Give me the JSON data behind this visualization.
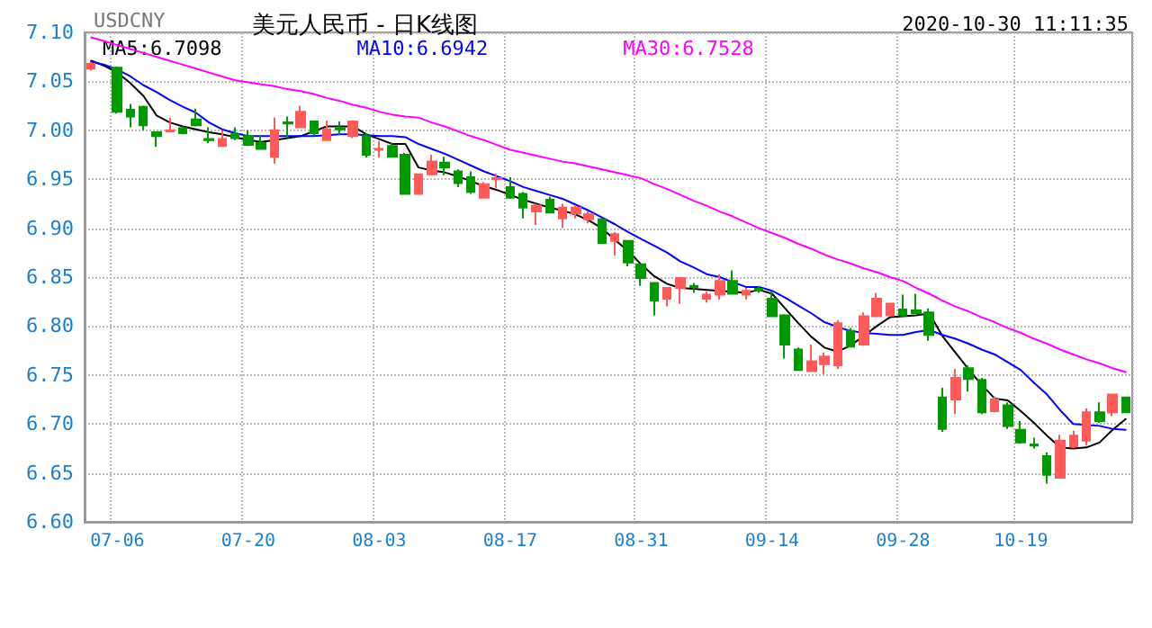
{
  "chart_data": {
    "type": "candlestick",
    "title": "美元人民币 - 日K线图",
    "annotations": [
      "USDCNY",
      "2020-10-30 11:11:35"
    ],
    "categories": [
      null,
      null,
      "07-06",
      null,
      null,
      null,
      null,
      null,
      null,
      null,
      null,
      null,
      "07-20",
      null,
      null,
      null,
      null,
      null,
      null,
      null,
      null,
      null,
      "08-03",
      null,
      null,
      null,
      null,
      null,
      null,
      null,
      null,
      null,
      "08-17",
      null,
      null,
      null,
      null,
      null,
      null,
      null,
      null,
      null,
      "08-31",
      null,
      null,
      null,
      null,
      null,
      null,
      null,
      null,
      null,
      "09-14",
      null,
      null,
      null,
      null,
      null,
      null,
      null,
      null,
      null,
      "09-28",
      null,
      null,
      null,
      null,
      null,
      null,
      null,
      null,
      "10-19",
      null,
      null,
      null,
      null,
      null,
      null,
      null,
      null
    ],
    "ohlc": [
      [
        7.063,
        7.07,
        7.061,
        7.068
      ],
      null,
      [
        7.064,
        7.065,
        7.017,
        7.019
      ],
      [
        7.021,
        7.027,
        7.003,
        7.014
      ],
      [
        7.024,
        7.025,
        7.0,
        7.005
      ],
      [
        6.998,
        6.999,
        6.983,
        6.994
      ],
      [
        6.999,
        7.013,
        6.998,
        7.0
      ],
      [
        7.002,
        7.004,
        6.996,
        6.997
      ],
      [
        7.011,
        7.022,
        7.004,
        7.005
      ],
      [
        6.991,
        7.003,
        6.987,
        6.99
      ],
      [
        6.984,
        7.0,
        6.984,
        6.991
      ],
      [
        6.996,
        7.003,
        6.99,
        6.992
      ],
      [
        6.994,
        7.0,
        6.984,
        6.985
      ],
      [
        6.987,
        6.995,
        6.981,
        6.981
      ],
      [
        6.973,
        7.013,
        6.966,
        7.0
      ],
      [
        7.008,
        7.014,
        6.992,
        7.007
      ],
      [
        7.003,
        7.025,
        7.003,
        7.019
      ],
      [
        7.009,
        7.01,
        6.995,
        6.997
      ],
      [
        6.99,
        7.01,
        6.99,
        7.001
      ],
      [
        7.002,
        7.009,
        6.995,
        7.001
      ],
      [
        6.994,
        7.01,
        6.992,
        7.009
      ],
      [
        6.994,
        6.997,
        6.972,
        6.975
      ],
      [
        6.98,
        6.989,
        6.972,
        6.981
      ],
      [
        6.984,
        6.987,
        6.973,
        6.973
      ],
      [
        6.975,
        6.977,
        6.935,
        6.935
      ],
      [
        6.935,
        6.955,
        6.935,
        6.955
      ],
      [
        6.955,
        6.975,
        6.954,
        6.968
      ],
      [
        6.967,
        6.973,
        6.954,
        6.962
      ],
      [
        6.958,
        6.96,
        6.942,
        6.946
      ],
      [
        6.952,
        6.958,
        6.935,
        6.937
      ],
      [
        6.931,
        6.947,
        6.931,
        6.945
      ],
      [
        6.95,
        6.956,
        6.941,
        6.951
      ],
      [
        6.942,
        6.952,
        6.93,
        6.931
      ],
      [
        6.935,
        6.937,
        6.91,
        6.921
      ],
      [
        6.917,
        6.925,
        6.903,
        6.923
      ],
      [
        6.929,
        6.932,
        6.915,
        6.916
      ],
      [
        6.91,
        6.925,
        6.9,
        6.921
      ],
      [
        6.915,
        6.923,
        6.91,
        6.921
      ],
      [
        6.909,
        6.917,
        6.905,
        6.914
      ],
      [
        6.909,
        6.91,
        6.885,
        6.885
      ],
      [
        6.887,
        6.896,
        6.872,
        6.894
      ],
      [
        6.887,
        6.888,
        6.861,
        6.865
      ],
      [
        6.863,
        6.864,
        6.841,
        6.849
      ],
      [
        6.844,
        6.845,
        6.811,
        6.826
      ],
      [
        6.828,
        6.839,
        6.82,
        6.839
      ],
      [
        6.839,
        6.849,
        6.823,
        6.849
      ],
      [
        6.841,
        6.844,
        6.834,
        6.84
      ],
      [
        6.828,
        6.835,
        6.824,
        6.832
      ],
      [
        6.832,
        6.853,
        6.827,
        6.846
      ],
      [
        6.846,
        6.857,
        6.832,
        6.833
      ],
      [
        6.832,
        6.839,
        6.827,
        6.836
      ],
      [
        6.838,
        6.841,
        6.834,
        6.837
      ],
      [
        6.828,
        6.836,
        6.809,
        6.81
      ],
      [
        6.811,
        6.812,
        6.767,
        6.781
      ],
      [
        6.776,
        6.778,
        6.755,
        6.755
      ],
      [
        6.754,
        6.781,
        6.754,
        6.764
      ],
      [
        6.761,
        6.773,
        6.751,
        6.769
      ],
      [
        6.76,
        6.806,
        6.756,
        6.803
      ],
      [
        6.795,
        6.798,
        6.778,
        6.779
      ],
      [
        6.781,
        6.814,
        6.78,
        6.81
      ],
      [
        6.81,
        6.834,
        6.81,
        6.828
      ],
      [
        6.811,
        6.823,
        6.81,
        6.823
      ],
      [
        6.817,
        6.832,
        6.81,
        6.811
      ],
      [
        6.816,
        6.833,
        6.813,
        6.813
      ],
      [
        6.814,
        6.818,
        6.785,
        6.791
      ],
      [
        6.727,
        6.737,
        6.692,
        6.695
      ],
      [
        6.725,
        6.756,
        6.71,
        6.747
      ],
      [
        6.757,
        6.76,
        6.733,
        6.746
      ],
      [
        6.745,
        6.747,
        6.71,
        6.712
      ],
      [
        6.713,
        6.728,
        6.712,
        6.725
      ],
      [
        6.719,
        6.722,
        6.695,
        6.698
      ],
      [
        6.694,
        6.703,
        6.68,
        6.681
      ],
      [
        6.679,
        6.686,
        6.675,
        6.678
      ],
      [
        6.667,
        6.671,
        6.639,
        6.648
      ],
      [
        6.645,
        6.689,
        6.645,
        6.683
      ],
      [
        6.677,
        6.693,
        6.677,
        6.688
      ],
      [
        6.683,
        6.716,
        6.678,
        6.712
      ],
      [
        6.712,
        6.722,
        6.701,
        6.703
      ],
      [
        6.712,
        6.73,
        6.708,
        6.73
      ],
      [
        6.727,
        6.727,
        6.712,
        6.712
      ]
    ],
    "colors": [
      "#ff5a5a",
      null,
      "#009900",
      "#009900",
      "#009900",
      "#009900",
      "#ff5a5a",
      "#009900",
      "#009900",
      "#009900",
      "#ff5a5a",
      "#009900",
      "#009900",
      "#009900",
      "#ff5a5a",
      "#009900",
      "#ff5a5a",
      "#009900",
      "#ff5a5a",
      "#009900",
      "#ff5a5a",
      "#009900",
      "#ff5a5a",
      "#009900",
      "#009900",
      "#ff5a5a",
      "#ff5a5a",
      "#009900",
      "#009900",
      "#009900",
      "#ff5a5a",
      "#ff5a5a",
      "#009900",
      "#009900",
      "#ff5a5a",
      "#009900",
      "#ff5a5a",
      "#ff5a5a",
      "#ff5a5a",
      "#009900",
      "#ff5a5a",
      "#009900",
      "#009900",
      "#009900",
      "#ff5a5a",
      "#ff5a5a",
      "#009900",
      "#ff5a5a",
      "#ff5a5a",
      "#009900",
      "#ff5a5a",
      "#009900",
      "#009900",
      "#009900",
      "#009900",
      "#ff5a5a",
      "#ff5a5a",
      "#ff5a5a",
      "#009900",
      "#ff5a5a",
      "#ff5a5a",
      "#ff5a5a",
      "#009900",
      "#009900",
      "#009900",
      "#009900",
      "#ff5a5a",
      "#009900",
      "#009900",
      "#ff5a5a",
      "#009900",
      "#009900",
      "#009900",
      "#009900",
      "#ff5a5a",
      "#ff5a5a",
      "#ff5a5a",
      "#009900",
      "#ff5a5a",
      "#009900"
    ],
    "series": [
      {
        "name": "MA5:6.7098",
        "type": "line",
        "color": "#000000",
        "values": [
          7.071,
          7.066,
          7.059,
          7.048,
          7.035,
          7.015,
          7.008,
          7.004,
          7.001,
          6.998,
          6.996,
          6.993,
          6.99,
          6.988,
          6.99,
          6.992,
          6.994,
          6.999,
          7.004,
          7.004,
          7.004,
          6.996,
          6.991,
          6.986,
          6.986,
          6.962,
          6.959,
          6.957,
          6.953,
          6.948,
          6.943,
          6.939,
          6.934,
          6.929,
          6.925,
          6.921,
          6.918,
          6.914,
          6.908,
          6.9,
          6.888,
          6.877,
          6.863,
          6.851,
          6.843,
          6.839,
          6.838,
          6.837,
          6.836,
          6.835,
          6.834,
          6.837,
          6.833,
          6.818,
          6.803,
          6.789,
          6.778,
          6.774,
          6.78,
          6.79,
          6.8,
          6.809,
          6.81,
          6.811,
          6.813,
          6.79,
          6.773,
          6.756,
          6.74,
          6.726,
          6.724,
          6.713,
          6.701,
          6.688,
          6.676,
          6.675,
          6.676,
          6.681,
          6.694,
          6.705
        ]
      },
      {
        "name": "MA10:6.6942",
        "type": "line",
        "color": "#0000ff",
        "values": [
          7.07,
          7.067,
          7.062,
          7.055,
          7.046,
          7.039,
          7.031,
          7.024,
          7.018,
          7.008,
          7.001,
          6.997,
          6.994,
          6.994,
          6.994,
          6.994,
          6.994,
          6.994,
          6.995,
          6.996,
          6.996,
          6.995,
          6.994,
          6.994,
          6.993,
          6.986,
          6.981,
          6.976,
          6.97,
          6.964,
          6.958,
          6.953,
          6.948,
          6.942,
          6.938,
          6.934,
          6.93,
          6.924,
          6.918,
          6.911,
          6.904,
          6.896,
          6.889,
          6.882,
          6.875,
          6.866,
          6.86,
          6.853,
          6.85,
          6.845,
          6.84,
          6.84,
          6.836,
          6.829,
          6.821,
          6.813,
          6.804,
          6.799,
          6.795,
          6.793,
          6.792,
          6.791,
          6.791,
          6.794,
          6.796,
          6.791,
          6.787,
          6.782,
          6.776,
          6.771,
          6.763,
          6.755,
          6.742,
          6.73,
          6.714,
          6.7,
          6.699,
          6.698,
          6.695,
          6.694
        ]
      },
      {
        "name": "MA30:6.7528",
        "type": "line",
        "color": "#ff00ff",
        "values": [
          7.095,
          7.091,
          7.087,
          7.083,
          7.079,
          7.075,
          7.071,
          7.067,
          7.063,
          7.059,
          7.055,
          7.051,
          7.049,
          7.047,
          7.045,
          7.042,
          7.04,
          7.037,
          7.033,
          7.03,
          7.026,
          7.023,
          7.019,
          7.016,
          7.014,
          7.013,
          7.008,
          7.004,
          6.999,
          6.994,
          6.99,
          6.985,
          6.98,
          6.977,
          6.974,
          6.971,
          6.968,
          6.966,
          6.963,
          6.96,
          6.957,
          6.954,
          6.951,
          6.945,
          6.94,
          6.934,
          6.928,
          6.923,
          6.917,
          6.912,
          6.906,
          6.9,
          6.895,
          6.89,
          6.884,
          6.879,
          6.873,
          6.868,
          6.864,
          6.859,
          6.855,
          6.85,
          6.846,
          6.839,
          6.833,
          6.826,
          6.82,
          6.815,
          6.809,
          6.804,
          6.798,
          6.793,
          6.787,
          6.782,
          6.776,
          6.771,
          6.766,
          6.762,
          6.757,
          6.753
        ]
      }
    ],
    "ylim": [
      6.6,
      7.1
    ],
    "yticks": [
      {
        "value": 6.6,
        "label": "6.60"
      },
      {
        "value": 6.65,
        "label": "6.65"
      },
      {
        "value": 6.7,
        "label": "6.70"
      },
      {
        "value": 6.75,
        "label": "6.75"
      },
      {
        "value": 6.8,
        "label": "6.80"
      },
      {
        "value": 6.85,
        "label": "6.85"
      },
      {
        "value": 6.9,
        "label": "6.90"
      },
      {
        "value": 6.95,
        "label": "6.95"
      },
      {
        "value": 7.0,
        "label": "7.00"
      },
      {
        "value": 7.05,
        "label": "7.05"
      },
      {
        "value": 7.1,
        "label": "7.10"
      }
    ],
    "grid": true,
    "legend": "top left",
    "marker": "none",
    "line_style": "solid"
  }
}
